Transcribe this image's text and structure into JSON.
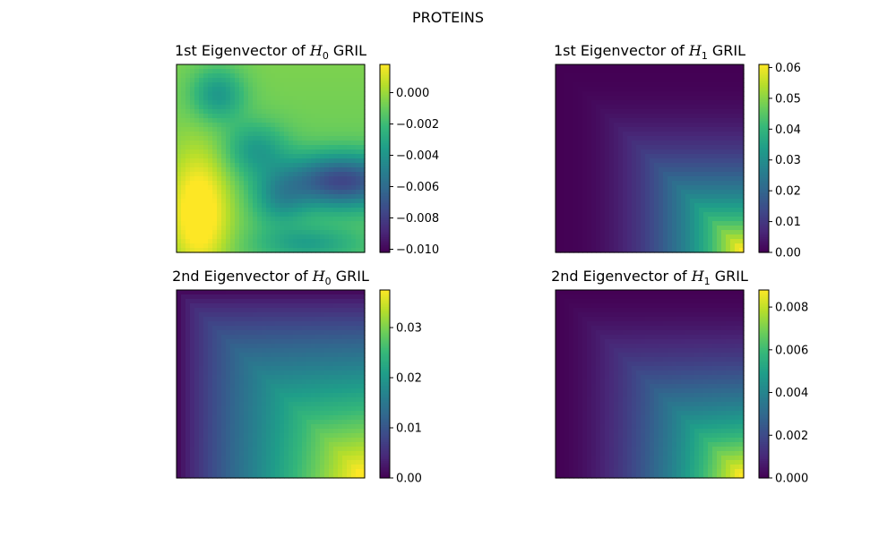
{
  "figure": {
    "suptitle": "PROTEINS"
  },
  "colormap": {
    "name": "viridis",
    "stops": [
      "#440154",
      "#482878",
      "#3e4989",
      "#31688e",
      "#26828e",
      "#1f9e89",
      "#35b779",
      "#6ece58",
      "#b5de2b",
      "#fde725"
    ]
  },
  "chart_data": [
    {
      "type": "heatmap",
      "title": {
        "pre": "1st Eigenvector of ",
        "var": "H",
        "sub": "0",
        "post": " GRIL"
      },
      "xticks": [],
      "yticks": [],
      "colorbar": {
        "vmin": -0.0102,
        "vmax": 0.0018,
        "ticks": [
          -0.01,
          -0.008,
          -0.006,
          -0.004,
          -0.002,
          0.0
        ],
        "tick_labels": [
          "−0.010",
          "−0.008",
          "−0.006",
          "−0.004",
          "−0.002",
          "0.000"
        ]
      },
      "pattern": "h0_first"
    },
    {
      "type": "heatmap",
      "title": {
        "pre": "1st Eigenvector of ",
        "var": "H",
        "sub": "1",
        "post": " GRIL"
      },
      "xticks": [],
      "yticks": [],
      "colorbar": {
        "vmin": 0.0,
        "vmax": 0.061,
        "ticks": [
          0.0,
          0.01,
          0.02,
          0.03,
          0.04,
          0.05,
          0.06
        ],
        "tick_labels": [
          "0.00",
          "0.01",
          "0.02",
          "0.03",
          "0.04",
          "0.05",
          "0.06"
        ]
      },
      "pattern": "h1_first"
    },
    {
      "type": "heatmap",
      "title": {
        "pre": "2nd Eigenvector of ",
        "var": "H",
        "sub": "0",
        "post": " GRIL"
      },
      "xticks": [],
      "yticks": [],
      "colorbar": {
        "vmin": 0.0,
        "vmax": 0.0375,
        "ticks": [
          0.0,
          0.01,
          0.02,
          0.03
        ],
        "tick_labels": [
          "0.00",
          "0.01",
          "0.02",
          "0.03"
        ]
      },
      "pattern": "h0_second"
    },
    {
      "type": "heatmap",
      "title": {
        "pre": "2nd Eigenvector of ",
        "var": "H",
        "sub": "1",
        "post": " GRIL"
      },
      "xticks": [],
      "yticks": [],
      "colorbar": {
        "vmin": 0.0,
        "vmax": 0.0088,
        "ticks": [
          0.0,
          0.002,
          0.004,
          0.006,
          0.008
        ],
        "tick_labels": [
          "0.000",
          "0.002",
          "0.004",
          "0.006",
          "0.008"
        ]
      },
      "pattern": "h1_second"
    }
  ]
}
